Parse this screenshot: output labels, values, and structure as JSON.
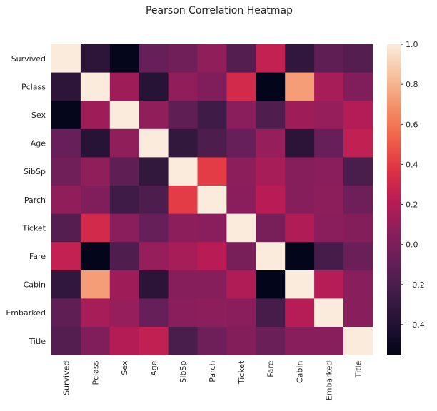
{
  "chart_data": {
    "type": "heatmap",
    "title": "Pearson Correlation Heatmap",
    "xlabel": "",
    "ylabel": "",
    "row_labels": [
      "Survived",
      "Pclass",
      "Sex",
      "Age",
      "SibSp",
      "Parch",
      "Ticket",
      "Fare",
      "Cabin",
      "Embarked",
      "Title"
    ],
    "col_labels": [
      "Survived",
      "Pclass",
      "Sex",
      "Age",
      "SibSp",
      "Parch",
      "Ticket",
      "Fare",
      "Cabin",
      "Embarked",
      "Title"
    ],
    "values": [
      [
        1.0,
        -0.34,
        -0.54,
        -0.08,
        -0.04,
        0.08,
        -0.16,
        0.26,
        -0.32,
        -0.11,
        -0.16
      ],
      [
        -0.34,
        1.0,
        0.13,
        -0.37,
        0.08,
        0.02,
        0.32,
        -0.55,
        0.73,
        0.16,
        0.02
      ],
      [
        -0.54,
        0.13,
        1.0,
        0.08,
        -0.11,
        -0.25,
        0.06,
        -0.18,
        0.13,
        0.1,
        0.2
      ],
      [
        -0.08,
        -0.37,
        0.08,
        1.0,
        -0.31,
        -0.19,
        -0.08,
        0.1,
        -0.35,
        -0.08,
        0.25
      ],
      [
        -0.04,
        0.08,
        -0.11,
        -0.31,
        1.0,
        0.41,
        0.07,
        0.16,
        0.04,
        0.06,
        -0.2
      ],
      [
        0.08,
        0.02,
        -0.25,
        -0.19,
        0.41,
        1.0,
        0.06,
        0.22,
        0.04,
        0.07,
        -0.05
      ],
      [
        -0.16,
        0.32,
        0.06,
        -0.08,
        0.07,
        0.06,
        1.0,
        -0.01,
        0.19,
        0.06,
        0.03
      ],
      [
        0.26,
        -0.55,
        -0.18,
        0.1,
        0.16,
        0.22,
        -0.01,
        1.0,
        -0.55,
        -0.22,
        -0.06
      ],
      [
        -0.32,
        0.73,
        0.13,
        -0.35,
        0.04,
        0.04,
        0.19,
        -0.55,
        1.0,
        0.21,
        0.05
      ],
      [
        -0.11,
        0.16,
        0.1,
        -0.08,
        0.06,
        0.07,
        0.06,
        -0.22,
        0.21,
        1.0,
        0.05
      ],
      [
        -0.16,
        0.02,
        0.2,
        0.25,
        -0.2,
        -0.05,
        0.03,
        -0.06,
        0.05,
        0.05,
        1.0
      ]
    ],
    "vmin": -0.55,
    "vmax": 1.0,
    "colormap": "rocket",
    "colorbar_ticks": [
      -0.4,
      -0.2,
      0.0,
      0.2,
      0.4,
      0.6,
      0.8,
      1.0
    ],
    "colorbar_tick_labels": [
      "−0.4",
      "−0.2",
      "0.0",
      "0.2",
      "0.4",
      "0.6",
      "0.8",
      "1.0"
    ],
    "legend": "colorbar-right",
    "grid": false
  }
}
